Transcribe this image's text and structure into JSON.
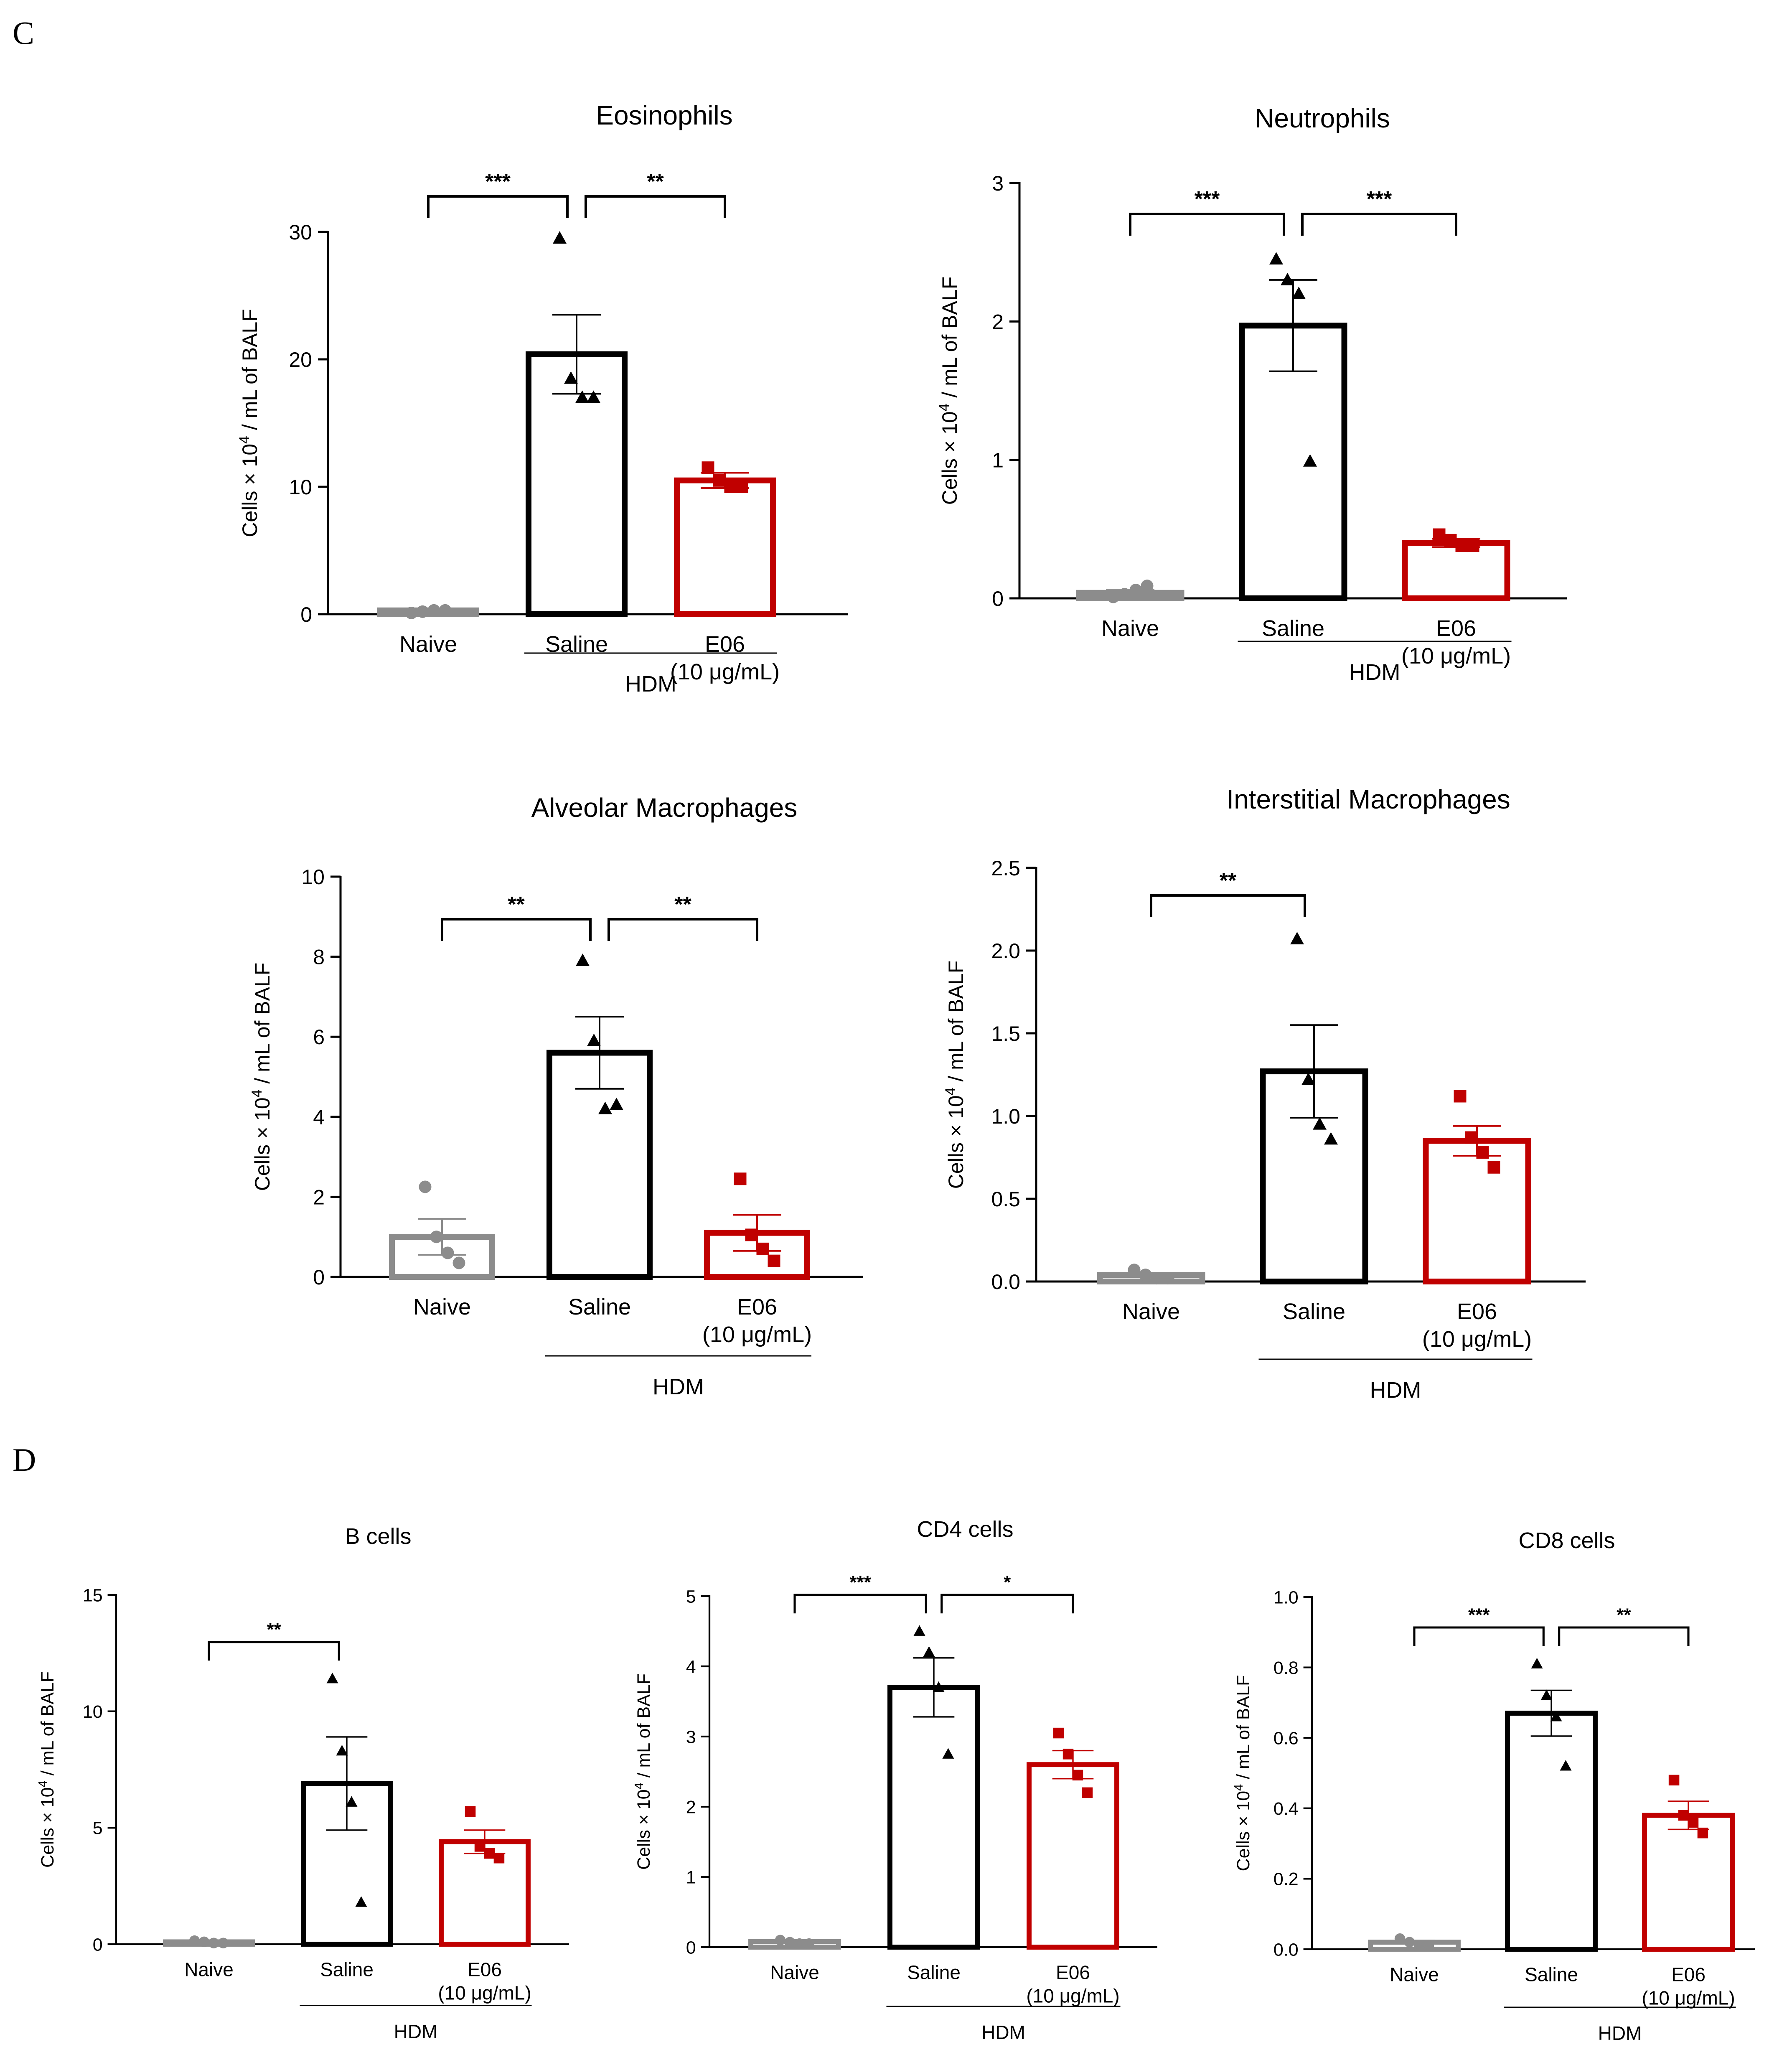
{
  "panel_labels": [
    "C",
    "D"
  ],
  "colors": {
    "naive": "#8c8c8c",
    "saline": "#000000",
    "e06": "#c00000",
    "axis": "#000000"
  },
  "ylabel": {
    "prefix": "Cells × 10",
    "sup": "4",
    "suffix": " / mL of BALF"
  },
  "group_label": "HDM",
  "chart_data": [
    {
      "type": "bar",
      "title": "Eosinophils",
      "categories": [
        "Naive",
        "Saline",
        "E06"
      ],
      "category_sublabels": [
        "",
        "",
        "(10 μg/mL)"
      ],
      "values": [
        0.3,
        20.4,
        10.5
      ],
      "sem": [
        0.1,
        3.1,
        0.6
      ],
      "points": [
        [
          0.1,
          0.2,
          0.3,
          0.3
        ],
        [
          29.5,
          18.5,
          17.0,
          17.0
        ],
        [
          11.5,
          10.5,
          10.0,
          10.0
        ]
      ],
      "markers": [
        "circle",
        "triangle",
        "square"
      ],
      "ylim": [
        0,
        30
      ],
      "yticks": [
        0,
        10,
        20,
        30
      ],
      "ytick_labels": [
        "0",
        "10",
        "20",
        "30"
      ],
      "significance": [
        {
          "from": 0,
          "to": 1,
          "label": "***"
        },
        {
          "from": 1,
          "to": 2,
          "label": "**"
        }
      ],
      "group": {
        "label": "HDM",
        "categories": [
          1,
          2
        ]
      }
    },
    {
      "type": "bar",
      "title": "Neutrophils",
      "categories": [
        "Naive",
        "Saline",
        "E06"
      ],
      "category_sublabels": [
        "",
        "",
        "(10 μg/mL)"
      ],
      "values": [
        0.04,
        1.97,
        0.4
      ],
      "sem": [
        0.02,
        0.33,
        0.03
      ],
      "points": [
        [
          0.01,
          0.03,
          0.06,
          0.09
        ],
        [
          2.45,
          2.3,
          2.2,
          0.99
        ],
        [
          0.46,
          0.42,
          0.38,
          0.38
        ]
      ],
      "markers": [
        "circle",
        "triangle",
        "square"
      ],
      "ylim": [
        0,
        3
      ],
      "yticks": [
        0,
        1,
        2,
        3
      ],
      "ytick_labels": [
        "0",
        "1",
        "2",
        "3"
      ],
      "significance": [
        {
          "from": 0,
          "to": 1,
          "label": "***"
        },
        {
          "from": 1,
          "to": 2,
          "label": "***"
        }
      ],
      "group": {
        "label": "HDM",
        "categories": [
          1,
          2
        ]
      }
    },
    {
      "type": "bar",
      "title": "Alveolar Macrophages",
      "categories": [
        "Naive",
        "Saline",
        "E06"
      ],
      "category_sublabels": [
        "",
        "",
        "(10 μg/mL)"
      ],
      "values": [
        1.0,
        5.6,
        1.1
      ],
      "sem": [
        0.45,
        0.9,
        0.45
      ],
      "points": [
        [
          2.25,
          1.0,
          0.6,
          0.35
        ],
        [
          7.9,
          5.9,
          4.2,
          4.3
        ],
        [
          2.45,
          1.05,
          0.7,
          0.4
        ]
      ],
      "markers": [
        "circle",
        "triangle",
        "square"
      ],
      "ylim": [
        0,
        10
      ],
      "yticks": [
        0,
        2,
        4,
        6,
        8,
        10
      ],
      "ytick_labels": [
        "0",
        "2",
        "4",
        "6",
        "8",
        "10"
      ],
      "significance": [
        {
          "from": 0,
          "to": 1,
          "label": "**"
        },
        {
          "from": 1,
          "to": 2,
          "label": "**"
        }
      ],
      "group": {
        "label": "HDM",
        "categories": [
          1,
          2
        ]
      }
    },
    {
      "type": "bar",
      "title": "Interstitial Macrophages",
      "categories": [
        "Naive",
        "Saline",
        "E06"
      ],
      "category_sublabels": [
        "",
        "",
        "(10 μg/mL)"
      ],
      "values": [
        0.04,
        1.27,
        0.85
      ],
      "sem": [
        0.01,
        0.28,
        0.09
      ],
      "points": [
        [
          0.07,
          0.04,
          0.02,
          0.02
        ],
        [
          2.07,
          1.22,
          0.95,
          0.86
        ],
        [
          1.12,
          0.87,
          0.78,
          0.69
        ]
      ],
      "markers": [
        "circle",
        "triangle",
        "square"
      ],
      "ylim": [
        0,
        2.5
      ],
      "yticks": [
        0,
        0.5,
        1.0,
        1.5,
        2.0,
        2.5
      ],
      "ytick_labels": [
        "0.0",
        "0.5",
        "1.0",
        "1.5",
        "2.0",
        "2.5"
      ],
      "significance": [
        {
          "from": 0,
          "to": 1,
          "label": "**"
        }
      ],
      "group": {
        "label": "HDM",
        "categories": [
          1,
          2
        ]
      }
    },
    {
      "type": "bar",
      "title": "B cells",
      "categories": [
        "Naive",
        "Saline",
        "E06"
      ],
      "category_sublabels": [
        "",
        "",
        "(10 μg/mL)"
      ],
      "values": [
        0.1,
        6.9,
        4.4
      ],
      "sem": [
        0.05,
        2.0,
        0.5
      ],
      "points": [
        [
          0.15,
          0.1,
          0.05,
          0.05
        ],
        [
          11.4,
          8.3,
          6.1,
          1.8
        ],
        [
          5.7,
          4.2,
          3.9,
          3.7
        ]
      ],
      "markers": [
        "circle",
        "triangle",
        "square"
      ],
      "ylim": [
        0,
        15
      ],
      "yticks": [
        0,
        5,
        10,
        15
      ],
      "ytick_labels": [
        "0",
        "5",
        "10",
        "15"
      ],
      "significance": [
        {
          "from": 0,
          "to": 1,
          "label": "**"
        }
      ],
      "group": {
        "label": "HDM",
        "categories": [
          1,
          2
        ]
      }
    },
    {
      "type": "bar",
      "title": "CD4 cells",
      "categories": [
        "Naive",
        "Saline",
        "E06"
      ],
      "category_sublabels": [
        "",
        "",
        "(10 μg/mL)"
      ],
      "values": [
        0.08,
        3.7,
        2.6
      ],
      "sem": [
        0.02,
        0.42,
        0.2
      ],
      "points": [
        [
          0.1,
          0.07,
          0.05,
          0.05
        ],
        [
          4.5,
          4.2,
          3.7,
          2.75
        ],
        [
          3.05,
          2.75,
          2.45,
          2.2
        ]
      ],
      "markers": [
        "circle",
        "triangle",
        "square"
      ],
      "ylim": [
        0,
        5
      ],
      "yticks": [
        0,
        1,
        2,
        3,
        4,
        5
      ],
      "ytick_labels": [
        "0",
        "1",
        "2",
        "3",
        "4",
        "5"
      ],
      "significance": [
        {
          "from": 0,
          "to": 1,
          "label": "***"
        },
        {
          "from": 1,
          "to": 2,
          "label": "*"
        }
      ],
      "group": {
        "label": "HDM",
        "categories": [
          1,
          2
        ]
      }
    },
    {
      "type": "bar",
      "title": "CD8 cells",
      "categories": [
        "Naive",
        "Saline",
        "E06"
      ],
      "category_sublabels": [
        "",
        "",
        "(10 μg/mL)"
      ],
      "values": [
        0.02,
        0.67,
        0.38
      ],
      "sem": [
        0.005,
        0.065,
        0.04
      ],
      "points": [
        [
          0.03,
          0.02,
          0.01,
          0.01
        ],
        [
          0.81,
          0.72,
          0.66,
          0.52
        ],
        [
          0.48,
          0.38,
          0.36,
          0.33
        ]
      ],
      "markers": [
        "circle",
        "triangle",
        "square"
      ],
      "ylim": [
        0,
        1.0
      ],
      "yticks": [
        0,
        0.2,
        0.4,
        0.6,
        0.8,
        1.0
      ],
      "ytick_labels": [
        "0.0",
        "0.2",
        "0.4",
        "0.6",
        "0.8",
        "1.0"
      ],
      "significance": [
        {
          "from": 0,
          "to": 1,
          "label": "***"
        },
        {
          "from": 1,
          "to": 2,
          "label": "**"
        }
      ],
      "group": {
        "label": "HDM",
        "categories": [
          1,
          2
        ]
      }
    }
  ]
}
